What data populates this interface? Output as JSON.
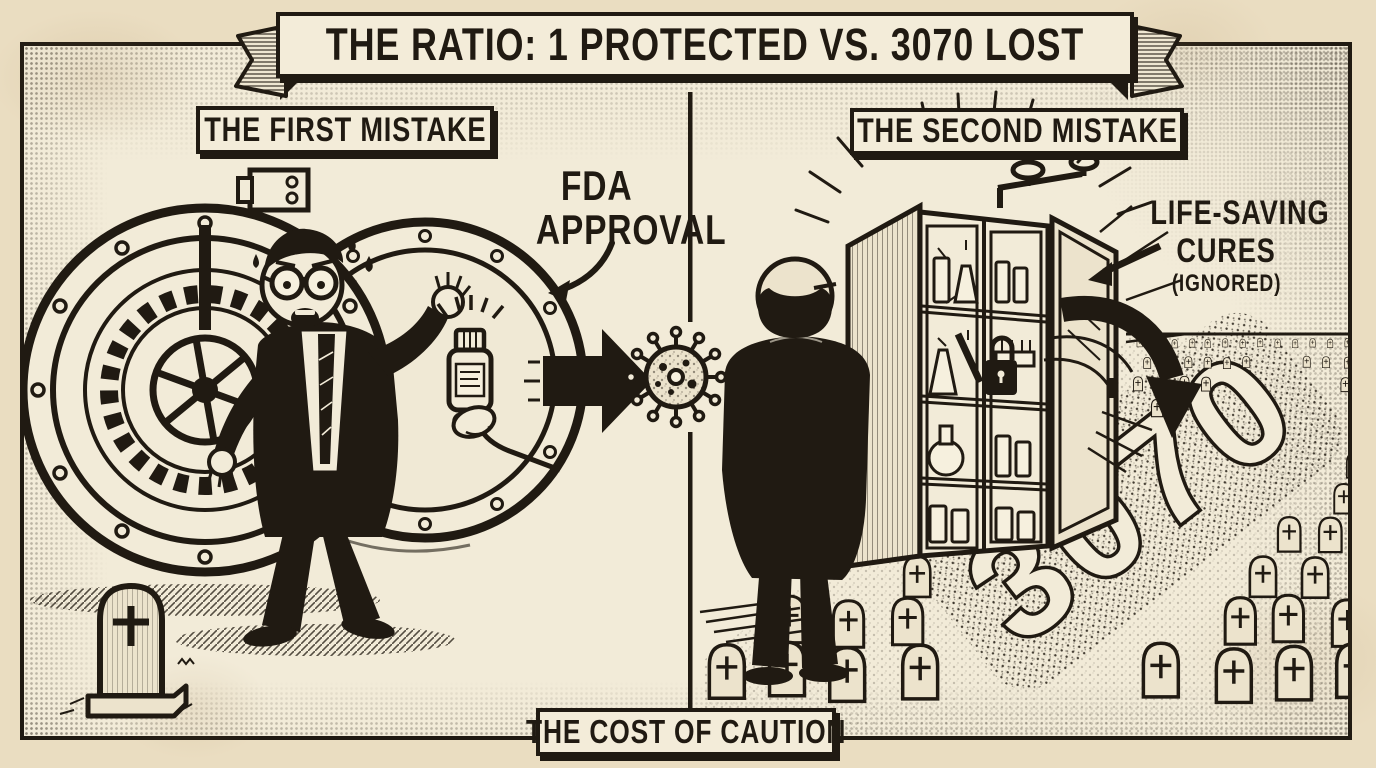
{
  "banner": {
    "title": "THE RATIO: 1 PROTECTED VS. 3070 LOST"
  },
  "left_panel": {
    "label": "THE FIRST MISTAKE",
    "callout": {
      "line1": "FDA",
      "line2": "APPROVAL"
    }
  },
  "right_panel": {
    "label": "THE SECOND MISTAKE",
    "callout": {
      "line1": "LIFE-SAVING",
      "line2": "CURES",
      "line3": "(IGNORED)"
    },
    "graveyard_number": "3070"
  },
  "footer": {
    "caption": "THE COST OF CAUTION"
  },
  "colors": {
    "outer_paper": "#eaddc1",
    "panel_paper": "#f2ebd8",
    "ink": "#201a12"
  },
  "icons": [
    "bank-vault-door-icon",
    "panicked-bureaucrat-icon",
    "hand-offering-medicine-bottle-icon",
    "virus-particle-icon",
    "lone-gravestone-icon",
    "bureaucrat-back-view-icon",
    "locked-cures-cabinet-icon",
    "padlock-icon",
    "gravestone-field-icon",
    "right-arrow-icon",
    "curved-arrow-icon",
    "ribbon-banner-icon"
  ]
}
